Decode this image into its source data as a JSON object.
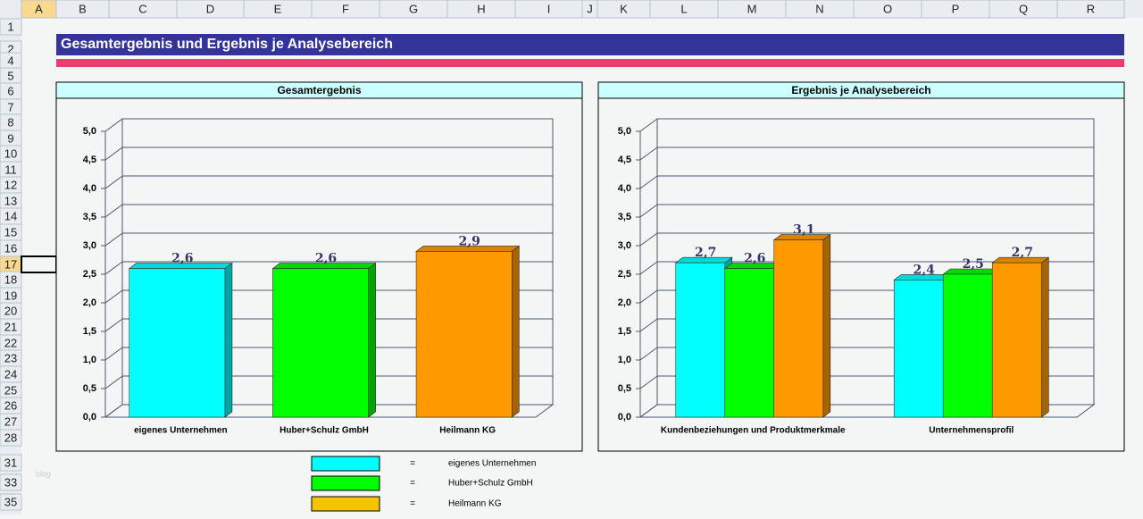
{
  "columns": [
    "A",
    "B",
    "C",
    "D",
    "E",
    "F",
    "G",
    "H",
    "I",
    "J",
    "K",
    "L",
    "M",
    "N",
    "O",
    "P",
    "Q",
    "R"
  ],
  "rows": [
    "1",
    "2",
    "4",
    "5",
    "6",
    "7",
    "8",
    "9",
    "10",
    "11",
    "12",
    "13",
    "14",
    "15",
    "16",
    "17",
    "18",
    "19",
    "20",
    "21",
    "22",
    "23",
    "24",
    "25",
    "26",
    "27",
    "28",
    "31",
    "33",
    "35"
  ],
  "header": {
    "title": "Gesamtergebnis und Ergebnis je Analysebereich"
  },
  "watermark": "blog",
  "legend": {
    "sign": "=",
    "colors": [
      "#00ffff",
      "#00ff00",
      "#f5c400"
    ]
  },
  "chart_data": [
    {
      "type": "bar",
      "title": "Gesamtergebnis",
      "categories": [
        "eigenes Unternehmen",
        "Huber+Schulz GmbH",
        "Heilmann KG"
      ],
      "values": [
        2.6,
        2.6,
        2.9
      ],
      "value_labels": [
        "2,6",
        "2,6",
        "2,9"
      ],
      "colors": [
        "#00ffff",
        "#00ff00",
        "#ff9900"
      ],
      "ylim": [
        0,
        5
      ],
      "yticks": [
        {
          "value": 0,
          "label": "0,0"
        },
        {
          "value": 0.5,
          "label": "0,5"
        },
        {
          "value": 1,
          "label": "1,0"
        },
        {
          "value": 1.5,
          "label": "1,5"
        },
        {
          "value": 2,
          "label": "2,0"
        },
        {
          "value": 2.5,
          "label": "2,5"
        },
        {
          "value": 3,
          "label": "3,0"
        },
        {
          "value": 3.5,
          "label": "3,5"
        },
        {
          "value": 4,
          "label": "4,0"
        },
        {
          "value": 4.5,
          "label": "4,5"
        },
        {
          "value": 5,
          "label": "5,0"
        }
      ],
      "grid": true
    },
    {
      "type": "bar",
      "title": "Ergebnis je Analysebereich",
      "categories": [
        "Kundenbeziehungen und Produktmerkmale",
        "Unternehmensprofil"
      ],
      "series": [
        {
          "name": "eigenes Unternehmen",
          "color": "#00ffff",
          "values": [
            2.7,
            2.4
          ],
          "value_labels": [
            "2,7",
            "2,4"
          ]
        },
        {
          "name": "Huber+Schulz GmbH",
          "color": "#00ff00",
          "values": [
            2.6,
            2.5
          ],
          "value_labels": [
            "2,6",
            "2,5"
          ]
        },
        {
          "name": "Heilmann KG",
          "color": "#ff9900",
          "values": [
            3.1,
            2.7
          ],
          "value_labels": [
            "3,1",
            "2,7"
          ]
        }
      ],
      "ylim": [
        0,
        5
      ],
      "yticks": [
        {
          "value": 0,
          "label": "0,0"
        },
        {
          "value": 0.5,
          "label": "0,5"
        },
        {
          "value": 1,
          "label": "1,0"
        },
        {
          "value": 1.5,
          "label": "1,5"
        },
        {
          "value": 2,
          "label": "2,0"
        },
        {
          "value": 2.5,
          "label": "2,5"
        },
        {
          "value": 3,
          "label": "3,0"
        },
        {
          "value": 3.5,
          "label": "3,5"
        },
        {
          "value": 4,
          "label": "4,0"
        },
        {
          "value": 4.5,
          "label": "4,5"
        },
        {
          "value": 5,
          "label": "5,0"
        }
      ],
      "grid": true
    }
  ]
}
